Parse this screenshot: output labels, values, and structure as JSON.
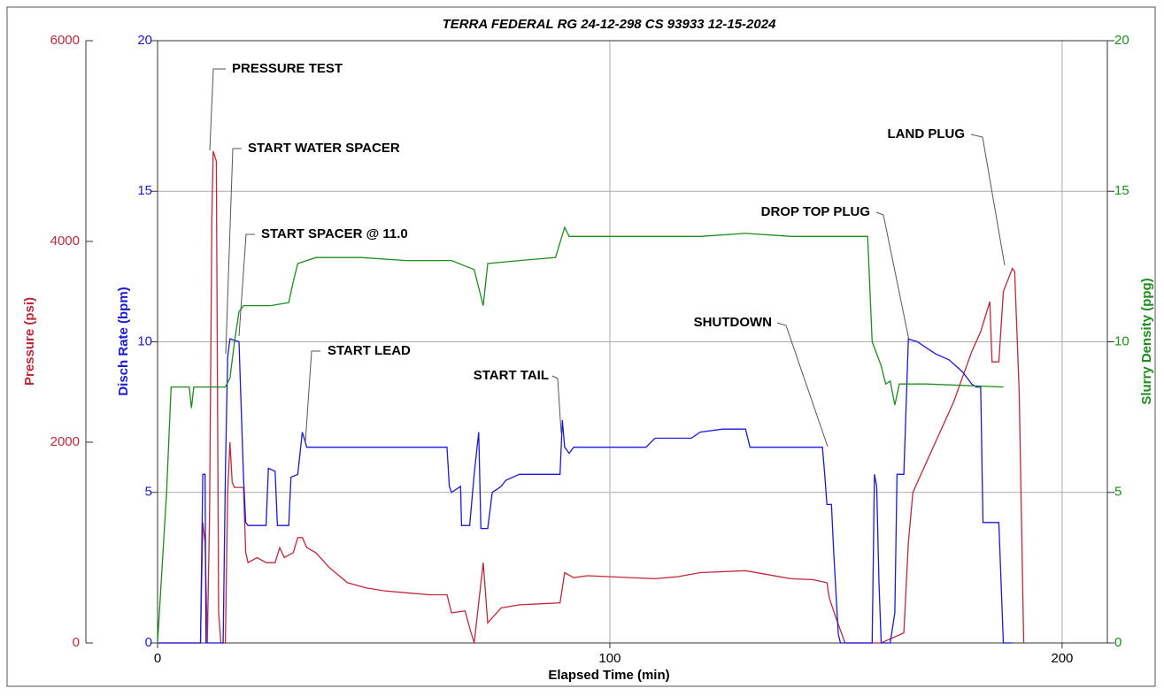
{
  "chart_data": {
    "type": "line",
    "title": "TERRA FEDERAL RG 24-12-298 CS 93933 12-15-2024",
    "x_label": "Elapsed Time (min)",
    "y_label": "Disch Rate (bpm)",
    "y2_label": "Slurry Density (ppg)",
    "y3_label": "Pressure (psi)",
    "xlim": [
      0,
      210
    ],
    "xticks": [
      0,
      100,
      200
    ],
    "ylim": [
      0,
      20
    ],
    "yticks": [
      0,
      5,
      10,
      15,
      20
    ],
    "y2lim": [
      0,
      20
    ],
    "y2ticks": [
      0,
      5,
      10,
      15,
      20
    ],
    "y3lim": [
      0,
      6000
    ],
    "y3ticks": [
      0,
      2000,
      4000,
      6000
    ],
    "grid": true,
    "series": [
      {
        "name": "Pressure",
        "color": "#c0283a",
        "axis": "y3",
        "x": [
          0,
          9.5,
          10,
          10.5,
          11,
          11.5,
          12,
          12.3,
          13,
          13.5,
          14,
          15,
          15.5,
          16,
          16.5,
          17,
          19,
          19.5,
          20,
          22,
          24,
          26,
          27,
          28,
          30,
          31,
          32,
          33,
          35,
          38,
          42,
          46,
          50,
          55,
          60,
          64,
          65,
          68,
          69,
          70,
          71,
          72,
          73,
          74,
          76,
          80,
          85,
          89,
          90,
          92,
          95,
          100,
          110,
          115,
          120,
          130,
          135,
          140,
          145,
          148,
          148.5,
          150,
          152,
          160,
          165,
          166,
          167,
          168,
          170,
          172,
          174,
          176,
          178,
          180,
          182,
          184,
          184.5,
          186,
          187,
          189,
          189.5,
          190.5,
          191.5
        ],
        "values": [
          0,
          0,
          1200,
          1000,
          0,
          1300,
          4200,
          4900,
          4800,
          300,
          0,
          0,
          1500,
          2000,
          1600,
          1550,
          1550,
          900,
          800,
          850,
          800,
          800,
          950,
          850,
          900,
          1050,
          1050,
          950,
          900,
          750,
          600,
          550,
          520,
          500,
          480,
          480,
          300,
          320,
          150,
          0,
          400,
          800,
          200,
          250,
          350,
          380,
          390,
          400,
          700,
          650,
          670,
          660,
          640,
          660,
          700,
          720,
          680,
          640,
          630,
          600,
          450,
          250,
          0,
          0,
          100,
          1000,
          1500,
          1600,
          1800,
          2000,
          2200,
          2400,
          2650,
          2900,
          3100,
          3400,
          2800,
          2800,
          3500,
          3730,
          3700,
          2500,
          0
        ]
      },
      {
        "name": "Disch Rate",
        "color": "#1a1ad8",
        "axis": "y",
        "x": [
          0,
          9.5,
          10,
          10.5,
          10.7,
          14.5,
          15,
          15.5,
          16,
          18,
          19,
          19.5,
          20,
          24,
          24.5,
          26,
          26.5,
          29,
          29.5,
          31,
          32,
          33,
          40,
          50,
          64,
          64.5,
          65,
          67,
          67.2,
          69,
          70,
          71,
          71.5,
          73,
          74,
          76,
          77,
          80,
          89,
          89.5,
          90,
          91,
          92,
          100,
          108,
          110,
          118,
          120,
          125,
          130,
          131,
          140,
          147,
          147.5,
          148,
          149,
          149.5,
          150.5,
          151,
          158,
          158.5,
          159,
          159.5,
          160,
          162,
          163,
          163.5,
          165,
          166,
          168,
          170,
          172,
          175,
          178,
          180,
          181,
          182,
          182.5,
          186,
          187,
          189
        ],
        "values": [
          0,
          0,
          5.6,
          5.6,
          0,
          0,
          5.6,
          9.5,
          10.1,
          10,
          5.5,
          4,
          3.9,
          3.9,
          5.8,
          5.7,
          3.9,
          3.9,
          5.5,
          5.6,
          7,
          6.5,
          6.5,
          6.5,
          6.5,
          5.2,
          5,
          5.2,
          3.9,
          3.9,
          5.6,
          7,
          3.8,
          3.8,
          5,
          5.2,
          5.4,
          5.6,
          5.6,
          7.4,
          6.5,
          6.3,
          6.5,
          6.5,
          6.5,
          6.8,
          6.8,
          7,
          7.1,
          7.1,
          6.5,
          6.5,
          6.5,
          5.6,
          4.6,
          4.6,
          3,
          0.3,
          0,
          0,
          5.6,
          5.2,
          2,
          0,
          0,
          1,
          5.6,
          5.6,
          10.1,
          10,
          9.8,
          9.6,
          9.4,
          9,
          8.6,
          8.5,
          8.5,
          4,
          4,
          0,
          0
        ]
      },
      {
        "name": "Slurry Density",
        "color": "#1e8c1e",
        "axis": "y2",
        "x": [
          0,
          2,
          3,
          7,
          7.5,
          8,
          15,
          16,
          17,
          18,
          19,
          25,
          29,
          30,
          31,
          35,
          45,
          55,
          65,
          70,
          72,
          73,
          80,
          88,
          89,
          90,
          91,
          100,
          110,
          120,
          130,
          140,
          150,
          157,
          158,
          160,
          161,
          162,
          163,
          164,
          170,
          187
        ],
        "values": [
          0,
          5,
          8.5,
          8.5,
          7.8,
          8.5,
          8.5,
          8.8,
          10,
          11,
          11.2,
          11.2,
          11.3,
          12,
          12.6,
          12.8,
          12.8,
          12.7,
          12.7,
          12.4,
          11.2,
          12.6,
          12.7,
          12.8,
          13.3,
          13.8,
          13.5,
          13.5,
          13.5,
          13.5,
          13.6,
          13.5,
          13.5,
          13.5,
          10,
          9.2,
          8.6,
          8.7,
          7.9,
          8.6,
          8.6,
          8.5
        ]
      }
    ],
    "annotations": [
      "PRESSURE TEST",
      "START WATER SPACER",
      "START SPACER @ 11.0",
      "START LEAD",
      "START TAIL",
      "SHUTDOWN",
      "DROP TOP PLUG",
      "LAND PLUG"
    ]
  }
}
